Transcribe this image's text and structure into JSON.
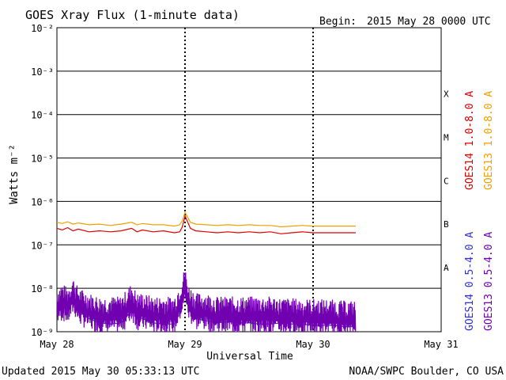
{
  "header": {
    "title": "GOES Xray Flux (1-minute data)",
    "begin_label": "Begin:",
    "begin_value": "2015 May 28 0000 UTC"
  },
  "footer": {
    "updated": "Updated 2015 May 30 05:33:13 UTC",
    "credit": "NOAA/SWPC Boulder, CO USA"
  },
  "colors": {
    "goes14_long": "#dd0000",
    "goes13_long": "#f0a000",
    "goes14_short": "#3030d0",
    "goes13_short": "#7000b0",
    "grid": "#000000"
  },
  "chart_data": {
    "type": "line",
    "title": "GOES Xray Flux (1-minute data)",
    "xlabel": "Universal Time",
    "ylabel": "Watts m⁻²",
    "y_scale": "log",
    "ylim": [
      1e-09,
      0.01
    ],
    "y_ticks": [
      {
        "value": 0.01,
        "label": "10⁻²"
      },
      {
        "value": 0.001,
        "label": "10⁻³"
      },
      {
        "value": 0.0001,
        "label": "10⁻⁴"
      },
      {
        "value": 1e-05,
        "label": "10⁻⁵"
      },
      {
        "value": 1e-06,
        "label": "10⁻⁶"
      },
      {
        "value": 1e-07,
        "label": "10⁻⁷"
      },
      {
        "value": 1e-08,
        "label": "10⁻⁸"
      },
      {
        "value": 1e-09,
        "label": "10⁻⁹"
      }
    ],
    "x_unit": "hours since 2015 May 28 0000 UTC",
    "xlim": [
      0,
      72
    ],
    "x_ticks": [
      {
        "value": 0,
        "label": "May 28"
      },
      {
        "value": 24,
        "label": "May 29"
      },
      {
        "value": 48,
        "label": "May 30"
      },
      {
        "value": 72,
        "label": "May 31"
      }
    ],
    "flare_classes": [
      {
        "label": "X",
        "value": 0.0003
      },
      {
        "label": "M",
        "value": 3e-05
      },
      {
        "label": "C",
        "value": 3e-06
      },
      {
        "label": "B",
        "value": 3e-07
      },
      {
        "label": "A",
        "value": 3e-08
      }
    ],
    "grid": true,
    "legend_position": "right",
    "series": [
      {
        "name": "GOES14 1.0-8.0 A",
        "color": "#dd0000",
        "style": "line",
        "x": [
          0,
          1,
          2,
          3,
          4,
          6,
          8,
          10,
          12,
          14,
          15,
          16,
          18,
          20,
          22,
          23,
          23.5,
          24,
          25,
          26,
          28,
          30,
          32,
          34,
          36,
          38,
          40,
          42,
          44,
          46,
          48,
          50,
          52,
          54,
          56
        ],
        "y": [
          2.4e-07,
          2.2e-07,
          2.5e-07,
          2.1e-07,
          2.3e-07,
          2e-07,
          2.1e-07,
          2e-07,
          2.1e-07,
          2.4e-07,
          2e-07,
          2.2e-07,
          2e-07,
          2.1e-07,
          1.9e-07,
          2e-07,
          2.6e-07,
          4.6e-07,
          2.4e-07,
          2.1e-07,
          2e-07,
          1.9e-07,
          2e-07,
          1.9e-07,
          2e-07,
          1.9e-07,
          2e-07,
          1.8e-07,
          1.9e-07,
          2e-07,
          1.9e-07,
          1.9e-07,
          1.9e-07,
          1.9e-07,
          1.9e-07
        ]
      },
      {
        "name": "GOES13 1.0-8.0 A",
        "color": "#f0a000",
        "style": "line",
        "x": [
          0,
          1,
          2,
          3,
          4,
          6,
          8,
          10,
          12,
          14,
          15,
          16,
          18,
          20,
          22,
          23,
          23.5,
          24,
          25,
          26,
          28,
          30,
          32,
          34,
          36,
          38,
          40,
          42,
          44,
          46,
          48,
          50,
          52,
          54,
          56
        ],
        "y": [
          3.3e-07,
          3.1e-07,
          3.4e-07,
          3e-07,
          3.2e-07,
          2.9e-07,
          3e-07,
          2.8e-07,
          3e-07,
          3.3e-07,
          2.9e-07,
          3.1e-07,
          2.9e-07,
          2.9e-07,
          2.7e-07,
          2.9e-07,
          3.6e-07,
          5.6e-07,
          3.3e-07,
          3e-07,
          2.9e-07,
          2.8e-07,
          2.9e-07,
          2.8e-07,
          2.9e-07,
          2.8e-07,
          2.8e-07,
          2.6e-07,
          2.7e-07,
          2.8e-07,
          2.7e-07,
          2.7e-07,
          2.7e-07,
          2.7e-07,
          2.7e-07
        ]
      },
      {
        "name": "GOES14 0.5-4.0 A",
        "color": "#3030d0",
        "style": "line",
        "x": [
          0,
          1,
          2,
          3,
          4,
          6,
          8,
          10,
          12,
          14,
          16,
          18,
          20,
          22,
          23.5,
          24,
          26,
          28,
          30,
          32,
          34,
          36,
          38,
          40,
          42,
          44,
          46,
          48,
          50,
          52,
          54,
          56
        ],
        "y": [
          2.5e-09,
          4e-09,
          3e-09,
          6e-09,
          3e-09,
          2e-09,
          1.6e-09,
          1.5e-09,
          1.6e-09,
          3e-09,
          2e-09,
          1.6e-09,
          1.5e-09,
          1.5e-09,
          5e-09,
          1.1e-08,
          2e-09,
          1.8e-09,
          1.6e-09,
          1.7e-09,
          1.6e-09,
          1.6e-09,
          1.5e-09,
          1.5e-09,
          1.6e-09,
          1.5e-09,
          1.5e-09,
          1.4e-09,
          1.4e-09,
          1.4e-09,
          1.3e-09,
          1.3e-09
        ]
      },
      {
        "name": "GOES13 0.5-4.0 A",
        "color": "#7000b0",
        "style": "noisy",
        "x": [
          0,
          1,
          2,
          3,
          4,
          6,
          8,
          10,
          12,
          14,
          15,
          16,
          18,
          20,
          22,
          23.5,
          24,
          24.5,
          26,
          28,
          30,
          32,
          34,
          36,
          38,
          40,
          42,
          44,
          46,
          48,
          50,
          52,
          54,
          56
        ],
        "y": [
          4e-09,
          5e-09,
          4e-09,
          7e-09,
          4e-09,
          3e-09,
          2.5e-09,
          2.5e-09,
          2.5e-09,
          5e-09,
          3e-09,
          3e-09,
          2.5e-09,
          2.5e-09,
          2.5e-09,
          7e-09,
          1.3e-08,
          5e-09,
          3e-09,
          3e-09,
          2.5e-09,
          2.5e-09,
          2.5e-09,
          2.5e-09,
          2.5e-09,
          2.5e-09,
          2.3e-09,
          2.3e-09,
          2.2e-09,
          2.2e-09,
          2.2e-09,
          2.1e-09,
          2e-09,
          2e-09
        ]
      }
    ]
  }
}
